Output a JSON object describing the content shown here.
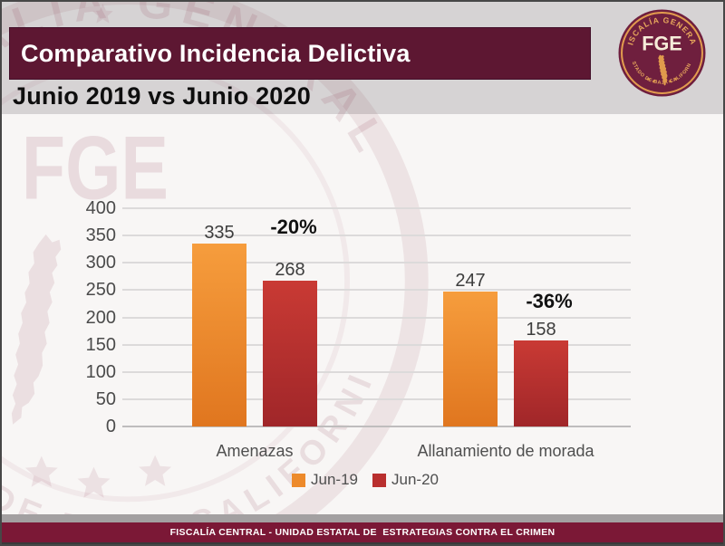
{
  "header": {
    "title": "Comparativo Incidencia Delictiva",
    "subtitle": "Junio 2019 vs Junio 2020"
  },
  "logo": {
    "arc_top_text": "FISCALÍA GENERAL",
    "arc_bottom_text": "ESTADO DE BAJA CALIFORNIA",
    "center_text": "FGE",
    "disc_color": "#6f1f3e",
    "gold_color": "#e29c4e",
    "center_text_color": "#f6ecd9"
  },
  "watermark": {
    "arc_top_text": "FISCALÍA GENERAL",
    "arc_bottom_text": "ESTADO DE BAJA CALIFORNIA",
    "center_text": "FGE"
  },
  "footer": {
    "text": "FISCALÍA CENTRAL - UNIDAD ESTATAL DE  ESTRATEGIAS CONTRA EL CRIMEN"
  },
  "chart_data": {
    "type": "bar",
    "title": "",
    "categories": [
      "Amenazas",
      "Allanamiento de morada"
    ],
    "series": [
      {
        "name": "Jun-19",
        "values": [
          335,
          247
        ],
        "color": "#ed8a2b",
        "gradient": [
          "#f69d3d",
          "#e0761f"
        ]
      },
      {
        "name": "Jun-20",
        "values": [
          268,
          158
        ],
        "color": "#b92f2e",
        "gradient": [
          "#c93a34",
          "#a02629"
        ]
      }
    ],
    "annotations": [
      {
        "text": "-20%",
        "category": "Amenazas"
      },
      {
        "text": "-36%",
        "category": "Allanamiento de morada"
      }
    ],
    "ylim": [
      0,
      400
    ],
    "ytick_step": 50,
    "ytick_labels": [
      "400",
      "350",
      "300",
      "250",
      "200",
      "150",
      "100",
      "50",
      "0"
    ],
    "grid": true,
    "gridline_color": "#dcdada",
    "legend_position": "bottom"
  }
}
